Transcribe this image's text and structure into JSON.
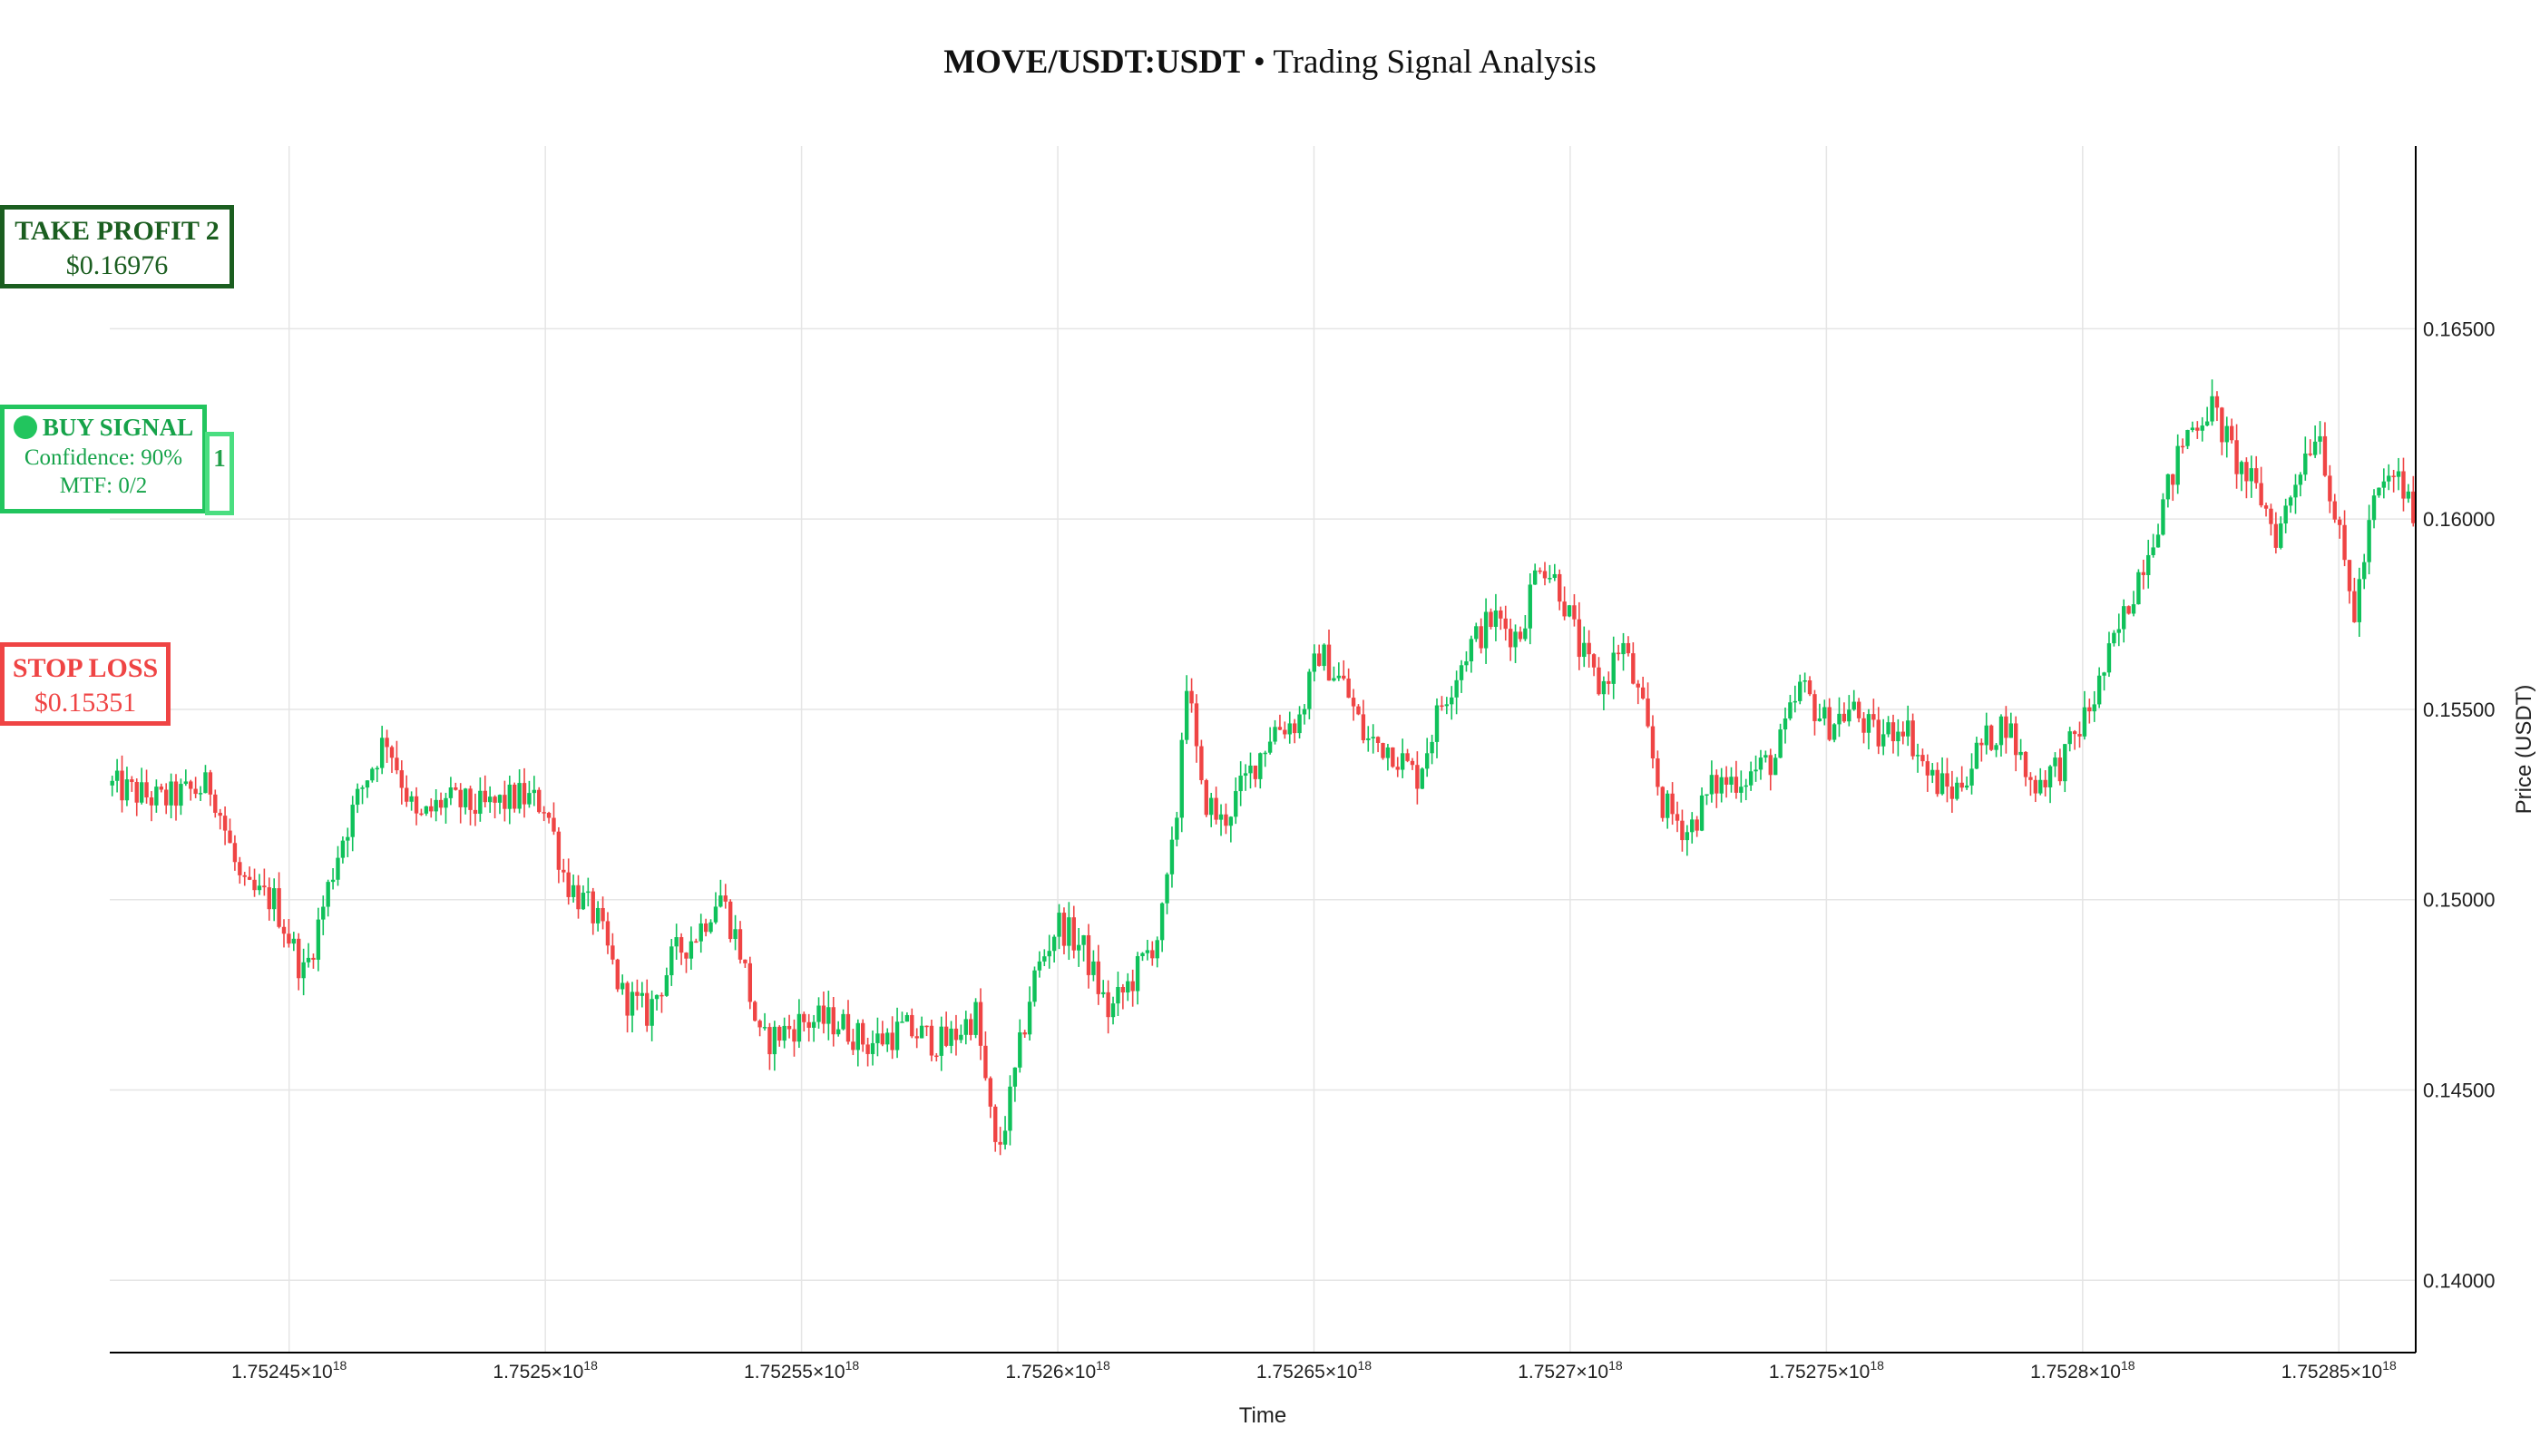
{
  "title": {
    "bold": "MOVE/USDT:USDT",
    "rest": " • Trading Signal Analysis"
  },
  "colors": {
    "up": "#0fc15a",
    "down": "#ef4444",
    "grid": "#e5e5e5",
    "axis": "#000000"
  },
  "chart_data": {
    "type": "candlestick",
    "xlabel": "Time",
    "ylabel": "Price (USDT)",
    "ylim": [
      0.1381,
      0.1698
    ],
    "grid": true,
    "x_ticks": [
      {
        "mant": "1.75245",
        "exp": "18"
      },
      {
        "mant": "1.7525",
        "exp": "18"
      },
      {
        "mant": "1.75255",
        "exp": "18"
      },
      {
        "mant": "1.7526",
        "exp": "18"
      },
      {
        "mant": "1.75265",
        "exp": "18"
      },
      {
        "mant": "1.7527",
        "exp": "18"
      },
      {
        "mant": "1.75275",
        "exp": "18"
      },
      {
        "mant": "1.7528",
        "exp": "18"
      },
      {
        "mant": "1.75285",
        "exp": "18"
      }
    ],
    "y_ticks": [
      0.14,
      0.145,
      0.15,
      0.155,
      0.16,
      0.165
    ],
    "y_tick_labels": [
      "0.14000",
      "0.14500",
      "0.15000",
      "0.15500",
      "0.16000",
      "0.16500"
    ],
    "xlim_e18": [
      1.752415,
      1.752865
    ],
    "price_path": [
      [
        1.752415,
        0.153
      ],
      [
        1.752425,
        0.1526
      ],
      [
        1.752435,
        0.153
      ],
      [
        1.752441,
        0.1502
      ],
      [
        1.752447,
        0.15
      ],
      [
        1.752453,
        0.148
      ],
      [
        1.75246,
        0.1515
      ],
      [
        1.752465,
        0.1532
      ],
      [
        1.752469,
        0.1543
      ],
      [
        1.752475,
        0.152
      ],
      [
        1.75248,
        0.1526
      ],
      [
        1.752488,
        0.1524
      ],
      [
        1.752495,
        0.1527
      ],
      [
        1.7525,
        0.1525
      ],
      [
        1.752504,
        0.1505
      ],
      [
        1.75251,
        0.1495
      ],
      [
        1.752515,
        0.1475
      ],
      [
        1.75252,
        0.147
      ],
      [
        1.752525,
        0.1485
      ],
      [
        1.75253,
        0.1492
      ],
      [
        1.752534,
        0.1502
      ],
      [
        1.752538,
        0.1487
      ],
      [
        1.752542,
        0.1462
      ],
      [
        1.75255,
        0.1468
      ],
      [
        1.752557,
        0.1468
      ],
      [
        1.752563,
        0.1462
      ],
      [
        1.75257,
        0.1466
      ],
      [
        1.752578,
        0.1462
      ],
      [
        1.752584,
        0.147
      ],
      [
        1.752588,
        0.1432
      ],
      [
        1.752591,
        0.1449
      ],
      [
        1.752595,
        0.1478
      ],
      [
        1.7526,
        0.1494
      ],
      [
        1.752605,
        0.1487
      ],
      [
        1.75261,
        0.147
      ],
      [
        1.752615,
        0.148
      ],
      [
        1.75262,
        0.1492
      ],
      [
        1.752623,
        0.1518
      ],
      [
        1.752625,
        0.156
      ],
      [
        1.752628,
        0.1528
      ],
      [
        1.752632,
        0.152
      ],
      [
        1.752637,
        0.1532
      ],
      [
        1.752642,
        0.1545
      ],
      [
        1.752647,
        0.1547
      ],
      [
        1.752651,
        0.1565
      ],
      [
        1.752656,
        0.1556
      ],
      [
        1.75266,
        0.1542
      ],
      [
        1.752665,
        0.154
      ],
      [
        1.75267,
        0.1532
      ],
      [
        1.752675,
        0.1552
      ],
      [
        1.75268,
        0.1566
      ],
      [
        1.752685,
        0.1574
      ],
      [
        1.75269,
        0.1569
      ],
      [
        1.752694,
        0.159
      ],
      [
        1.752698,
        0.1582
      ],
      [
        1.752702,
        0.1565
      ],
      [
        1.752706,
        0.1555
      ],
      [
        1.75271,
        0.1568
      ],
      [
        1.752714,
        0.155
      ],
      [
        1.752718,
        0.1525
      ],
      [
        1.752723,
        0.1518
      ],
      [
        1.752728,
        0.153
      ],
      [
        1.752735,
        0.1533
      ],
      [
        1.75274,
        0.1537
      ],
      [
        1.752745,
        0.1556
      ],
      [
        1.75275,
        0.1546
      ],
      [
        1.752755,
        0.155
      ],
      [
        1.75276,
        0.1542
      ],
      [
        1.752765,
        0.1547
      ],
      [
        1.75277,
        0.1532
      ],
      [
        1.752775,
        0.1528
      ],
      [
        1.75278,
        0.154
      ],
      [
        1.752785,
        0.1547
      ],
      [
        1.75279,
        0.153
      ],
      [
        1.752796,
        0.1536
      ],
      [
        1.752802,
        0.1552
      ],
      [
        1.752808,
        0.1574
      ],
      [
        1.752812,
        0.159
      ],
      [
        1.752816,
        0.1605
      ],
      [
        1.75282,
        0.1622
      ],
      [
        1.752825,
        0.163
      ],
      [
        1.75283,
        0.1615
      ],
      [
        1.752835,
        0.1605
      ],
      [
        1.752838,
        0.1595
      ],
      [
        1.752842,
        0.1613
      ],
      [
        1.752846,
        0.1625
      ],
      [
        1.75285,
        0.1595
      ],
      [
        1.752853,
        0.1575
      ],
      [
        1.752857,
        0.1605
      ],
      [
        1.752861,
        0.1612
      ],
      [
        1.752865,
        0.16
      ]
    ],
    "annotations": [
      {
        "id": "take-profit-2",
        "label": "TAKE PROFIT 2",
        "price": "$0.16976"
      },
      {
        "id": "buy-signal",
        "label": "BUY SIGNAL",
        "confidence": "Confidence: 90%",
        "mtf": "MTF: 0/2",
        "tag": "1"
      },
      {
        "id": "stop-loss",
        "label": "STOP LOSS",
        "price": "$0.15351"
      }
    ]
  }
}
